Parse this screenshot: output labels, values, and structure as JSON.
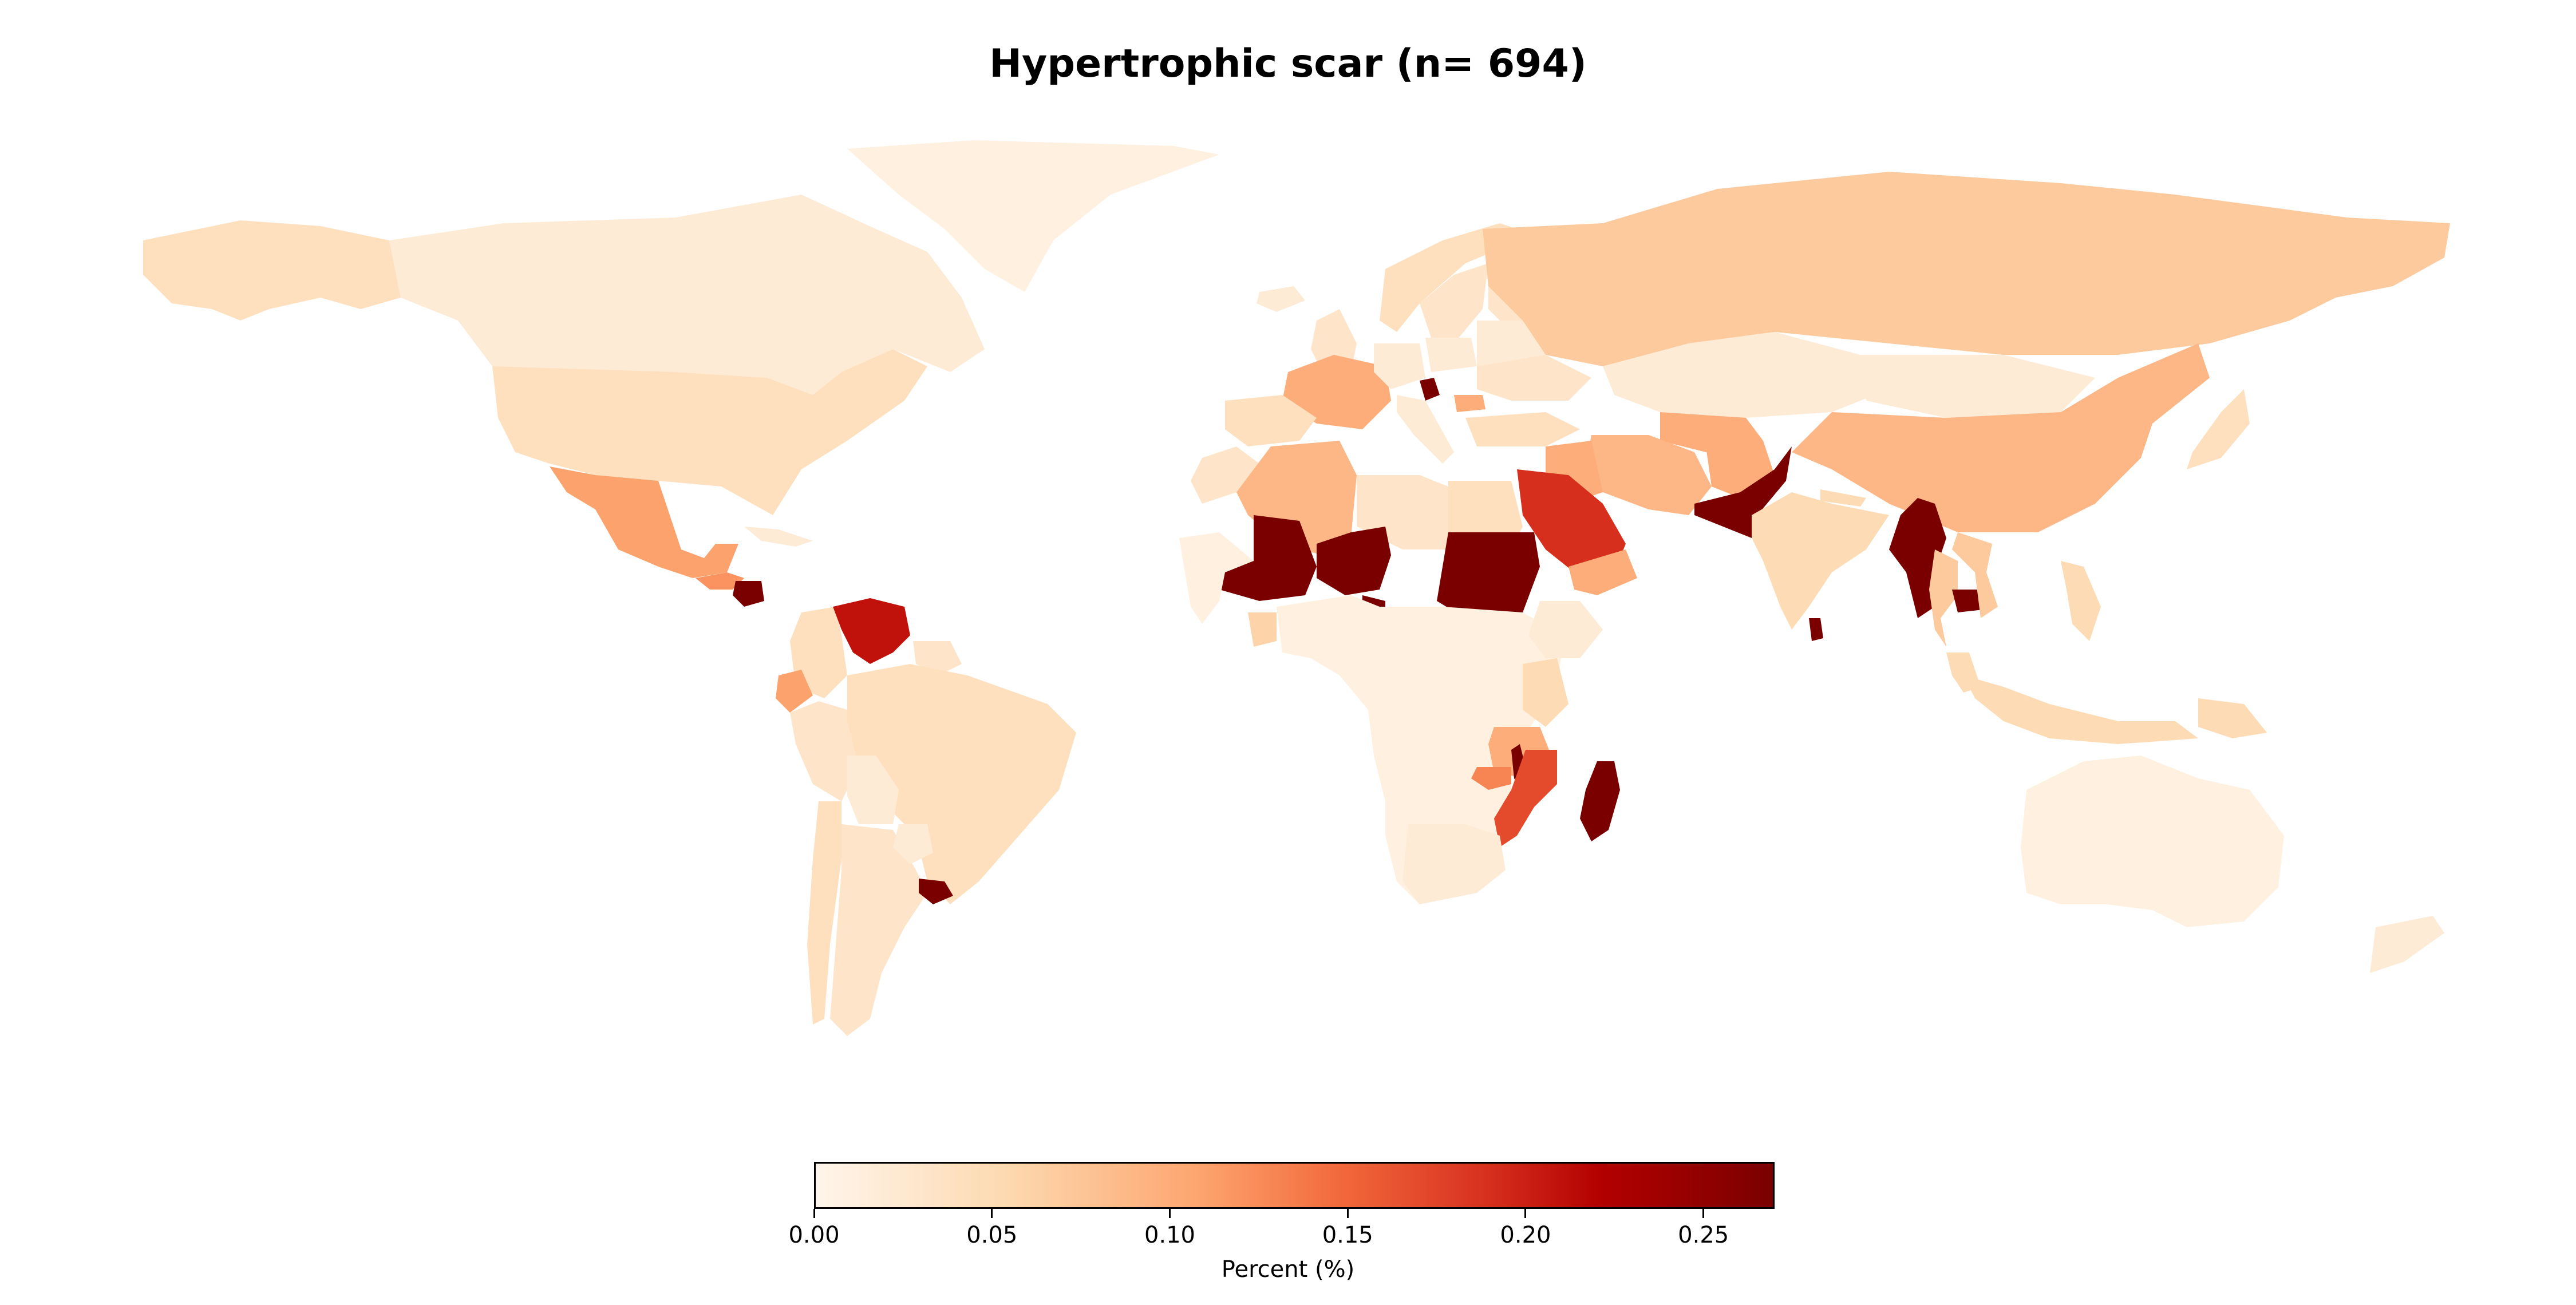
{
  "chart_data": {
    "type": "choropleth",
    "title": "Hypertrophic scar (n= 694)",
    "colorbar": {
      "label": "Percent (%)",
      "range": [
        0.0,
        0.27
      ],
      "ticks": [
        "0.00",
        "0.05",
        "0.10",
        "0.15",
        "0.20",
        "0.25"
      ],
      "colormap": "OrRd"
    },
    "regions": [
      {
        "name": "Canada",
        "value": 0.02
      },
      {
        "name": "Alaska",
        "value": 0.04
      },
      {
        "name": "Greenland",
        "value": 0.01
      },
      {
        "name": "United States",
        "value": 0.04
      },
      {
        "name": "Mexico",
        "value": 0.11
      },
      {
        "name": "Guatemala",
        "value": 0.12
      },
      {
        "name": "Honduras",
        "value": 0.27
      },
      {
        "name": "Cuba",
        "value": 0.02
      },
      {
        "name": "Colombia",
        "value": 0.04
      },
      {
        "name": "Venezuela",
        "value": 0.21
      },
      {
        "name": "Ecuador",
        "value": 0.11
      },
      {
        "name": "Guyana",
        "value": 0.03
      },
      {
        "name": "Peru",
        "value": 0.03
      },
      {
        "name": "Brazil",
        "value": 0.04
      },
      {
        "name": "Bolivia",
        "value": 0.02
      },
      {
        "name": "Chile",
        "value": 0.04
      },
      {
        "name": "Argentina",
        "value": 0.03
      },
      {
        "name": "Paraguay",
        "value": 0.02
      },
      {
        "name": "Uruguay",
        "value": 0.27
      },
      {
        "name": "Iceland",
        "value": 0.02
      },
      {
        "name": "Norway",
        "value": 0.04
      },
      {
        "name": "Sweden",
        "value": 0.03
      },
      {
        "name": "Finland",
        "value": 0.03
      },
      {
        "name": "United Kingdom",
        "value": 0.03
      },
      {
        "name": "France",
        "value": 0.1
      },
      {
        "name": "Spain",
        "value": 0.04
      },
      {
        "name": "Germany",
        "value": 0.02
      },
      {
        "name": "Italy",
        "value": 0.02
      },
      {
        "name": "Poland",
        "value": 0.02
      },
      {
        "name": "Eastern Europe",
        "value": 0.02
      },
      {
        "name": "Ukraine",
        "value": 0.03
      },
      {
        "name": "Bosnia and Herzegovina",
        "value": 0.27
      },
      {
        "name": "Bulgaria",
        "value": 0.1
      },
      {
        "name": "Turkey",
        "value": 0.04
      },
      {
        "name": "Russia",
        "value": 0.07
      },
      {
        "name": "Kazakhstan",
        "value": 0.02
      },
      {
        "name": "Uzbekistan",
        "value": 0.1
      },
      {
        "name": "Mongolia",
        "value": 0.02
      },
      {
        "name": "China",
        "value": 0.09
      },
      {
        "name": "Japan",
        "value": 0.04
      },
      {
        "name": "Iran",
        "value": 0.09
      },
      {
        "name": "Iraq",
        "value": 0.1
      },
      {
        "name": "Afghanistan",
        "value": 0.1
      },
      {
        "name": "Pakistan",
        "value": 0.27
      },
      {
        "name": "India",
        "value": 0.05
      },
      {
        "name": "Nepal",
        "value": 0.05
      },
      {
        "name": "Myanmar",
        "value": 0.27
      },
      {
        "name": "Thailand",
        "value": 0.07
      },
      {
        "name": "Cambodia",
        "value": 0.27
      },
      {
        "name": "Vietnam",
        "value": 0.07
      },
      {
        "name": "Malaysia",
        "value": 0.05
      },
      {
        "name": "Indonesia",
        "value": 0.05
      },
      {
        "name": "Philippines",
        "value": 0.05
      },
      {
        "name": "Papua New Guinea",
        "value": 0.05
      },
      {
        "name": "Sri Lanka",
        "value": 0.27
      },
      {
        "name": "Saudi Arabia",
        "value": 0.19
      },
      {
        "name": "Yemen",
        "value": 0.1
      },
      {
        "name": "Morocco",
        "value": 0.03
      },
      {
        "name": "Algeria",
        "value": 0.09
      },
      {
        "name": "Libya",
        "value": 0.03
      },
      {
        "name": "Egypt",
        "value": 0.04
      },
      {
        "name": "Mali",
        "value": 0.27
      },
      {
        "name": "Niger",
        "value": 0.27
      },
      {
        "name": "Sudan",
        "value": 0.27
      },
      {
        "name": "West Africa Coast",
        "value": 0.01
      },
      {
        "name": "Ghana",
        "value": 0.06
      },
      {
        "name": "Cameroon",
        "value": 0.27
      },
      {
        "name": "Central Africa",
        "value": 0.01
      },
      {
        "name": "Ethiopia",
        "value": 0.02
      },
      {
        "name": "Kenya",
        "value": 0.05
      },
      {
        "name": "Tanzania",
        "value": 0.1
      },
      {
        "name": "Malawi",
        "value": 0.27
      },
      {
        "name": "Zambia",
        "value": 0.13
      },
      {
        "name": "Mozambique",
        "value": 0.17
      },
      {
        "name": "Southern Africa",
        "value": 0.02
      },
      {
        "name": "Madagascar",
        "value": 0.27
      },
      {
        "name": "Australia",
        "value": 0.01
      },
      {
        "name": "New Zealand",
        "value": 0.02
      }
    ]
  }
}
